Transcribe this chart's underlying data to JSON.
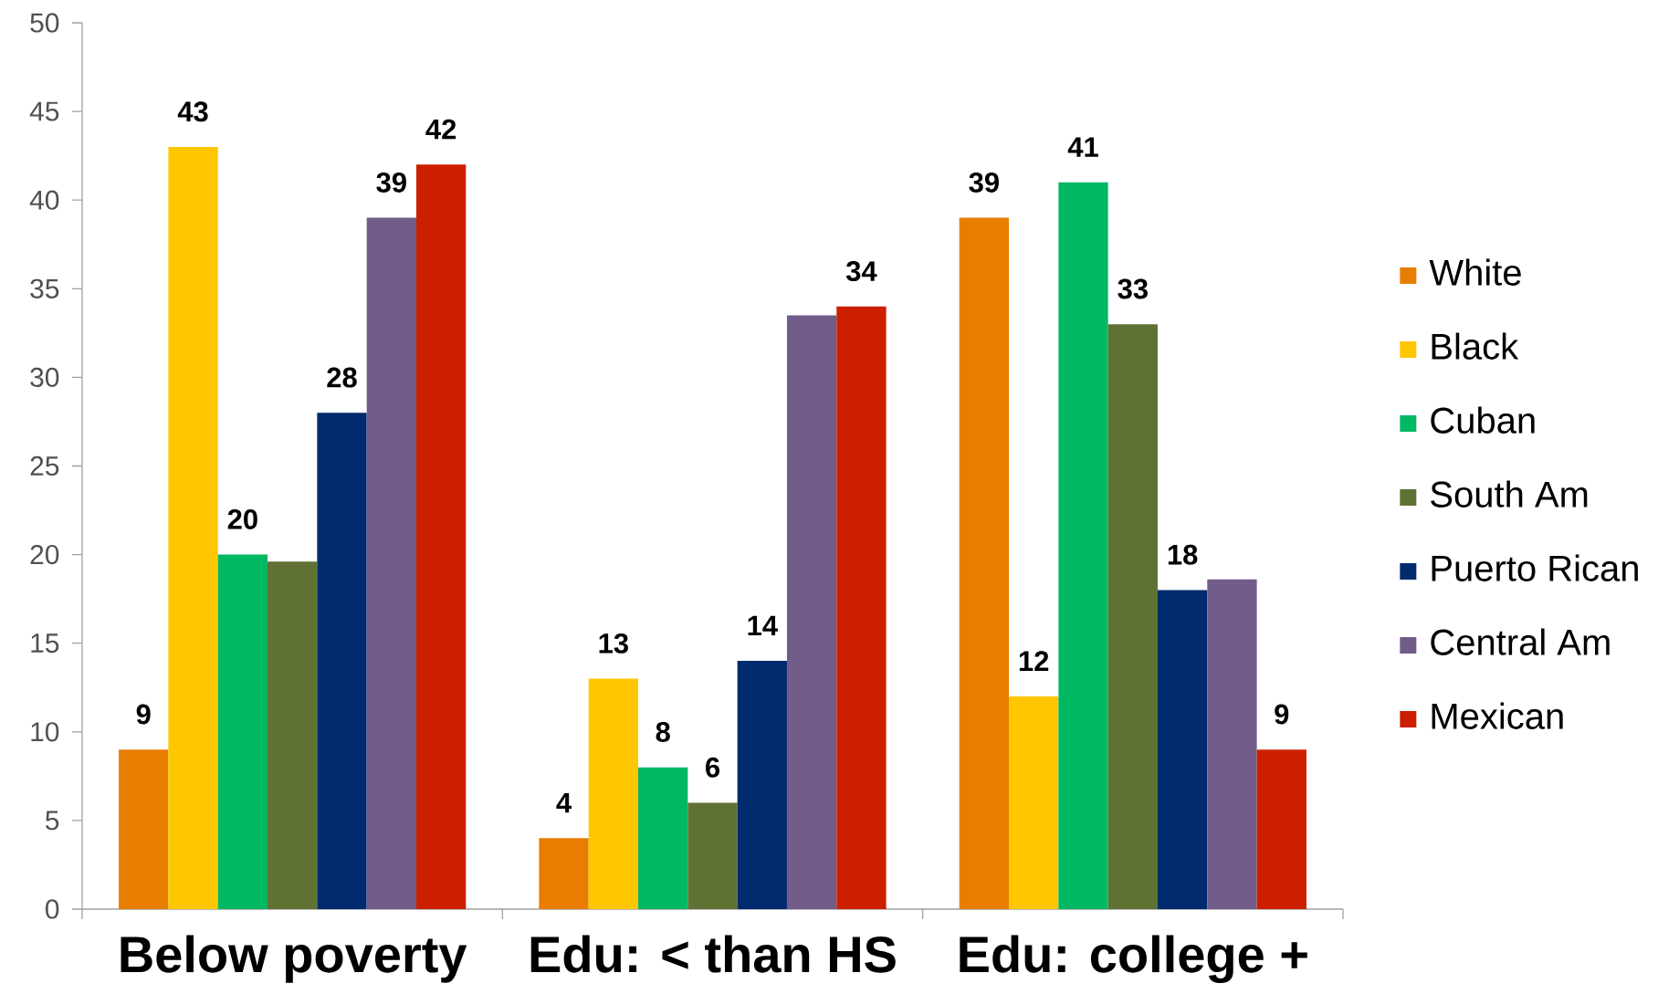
{
  "chart_data": {
    "type": "bar",
    "categories": [
      "Below poverty",
      "Edu: < than HS",
      "Edu: college +"
    ],
    "series": [
      {
        "name": "White",
        "color": "#e87d00",
        "values": [
          9,
          4,
          39
        ],
        "value_labels": [
          "9",
          "4",
          "39"
        ]
      },
      {
        "name": "Black",
        "color": "#ffc700",
        "values": [
          43,
          13,
          12
        ],
        "value_labels": [
          "43",
          "13",
          "12"
        ]
      },
      {
        "name": "Cuban",
        "color": "#00b862",
        "values": [
          20,
          8,
          41
        ],
        "value_labels": [
          "20",
          "8",
          "41"
        ]
      },
      {
        "name": "South Am",
        "color": "#5f7234",
        "values": [
          19.6,
          6,
          33
        ],
        "value_labels": [
          null,
          "6",
          "33"
        ]
      },
      {
        "name": "Puerto Rican",
        "color": "#002b6e",
        "values": [
          28,
          14,
          18
        ],
        "value_labels": [
          "28",
          "14",
          "18"
        ]
      },
      {
        "name": "Central Am",
        "color": "#725c8a",
        "values": [
          39,
          33.5,
          18.6
        ],
        "value_labels": [
          "39",
          null,
          null
        ]
      },
      {
        "name": "Mexican",
        "color": "#cc1f00",
        "values": [
          42,
          34,
          9
        ],
        "value_labels": [
          "42",
          "34",
          "9"
        ]
      }
    ],
    "ylim": [
      0,
      50
    ],
    "yticks": [
      0,
      5,
      10,
      15,
      20,
      25,
      30,
      35,
      40,
      45,
      50
    ],
    "legend": "right"
  }
}
